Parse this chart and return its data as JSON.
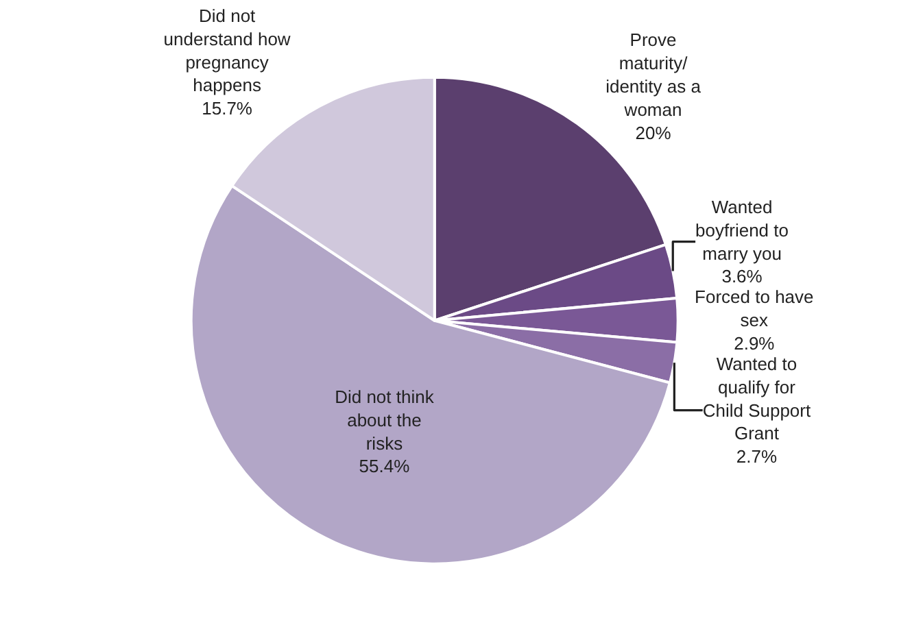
{
  "chart_data": {
    "type": "pie",
    "categories": [
      "Prove maturity/ identity as a woman",
      "Wanted boyfriend to marry you",
      "Forced to have sex",
      "Wanted to qualify for Child Support Grant",
      "Did not think about the risks",
      "Did not understand how pregnancy happens"
    ],
    "values": [
      20,
      3.6,
      2.9,
      2.7,
      55.4,
      15.7
    ],
    "value_labels": [
      "20%",
      "3.6%",
      "2.9%",
      "2.7%",
      "55.4%",
      "15.7%"
    ],
    "colors": [
      "#5b3f6e",
      "#6b4a86",
      "#7a5896",
      "#8b6ea6",
      "#b2a6c7",
      "#d0c8dc"
    ]
  }
}
